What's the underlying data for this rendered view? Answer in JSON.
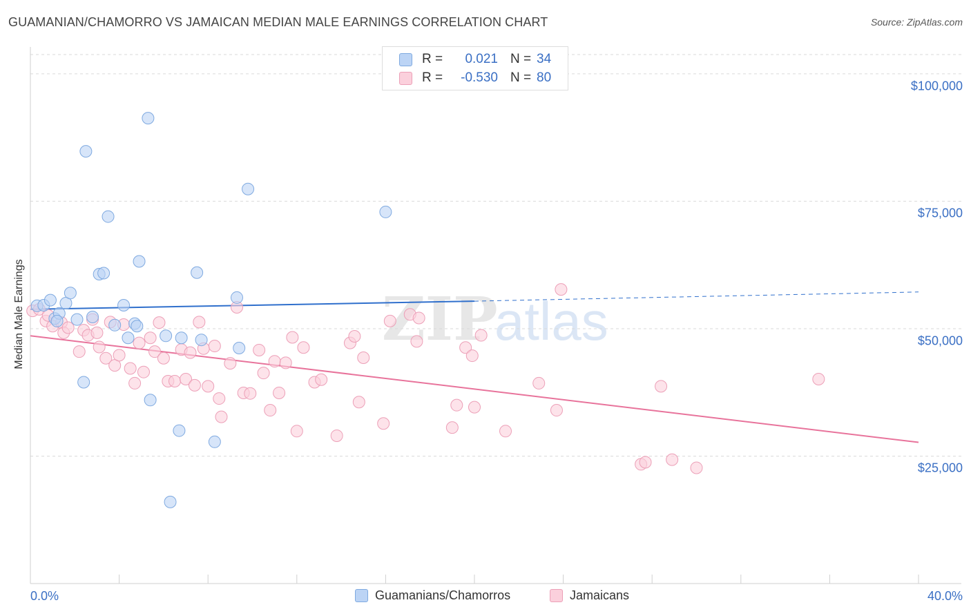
{
  "title": "GUAMANIAN/CHAMORRO VS JAMAICAN MEDIAN MALE EARNINGS CORRELATION CHART",
  "source": "Source: ZipAtlas.com",
  "watermark": {
    "zip": "ZIP",
    "atlas": "atlas"
  },
  "legend": {
    "r_label": "R =",
    "n_label": "N =",
    "series1": {
      "r": "0.021",
      "n": "34"
    },
    "series2": {
      "r": "-0.530",
      "n": "80"
    }
  },
  "colors": {
    "blue_fill": "#bcd4f5",
    "blue_stroke": "#7ea9e0",
    "blue_line": "#2f6fcc",
    "pink_fill": "#fbd0dc",
    "pink_stroke": "#ec9fb7",
    "pink_line": "#e8739b",
    "tick_text": "#3a6fc4"
  },
  "chart_data": {
    "type": "scatter",
    "title": "GUAMANIAN/CHAMORRO VS JAMAICAN MEDIAN MALE EARNINGS CORRELATION CHART",
    "xlabel": "",
    "ylabel": "Median Male Earnings",
    "xlim": [
      0,
      40
    ],
    "ylim": [
      0,
      105000
    ],
    "x_tick_labels": [
      "0.0%",
      "40.0%"
    ],
    "y_ticks": [
      25000,
      50000,
      75000,
      100000
    ],
    "y_tick_labels": [
      "$25,000",
      "$50,000",
      "$75,000",
      "$100,000"
    ],
    "series": [
      {
        "name": "Guamanians/Chamorros",
        "r": 0.021,
        "n": 34,
        "trend": {
          "x": [
            0,
            20
          ],
          "y": [
            53800,
            55400
          ],
          "dashed_to": [
            40,
            57200
          ]
        },
        "points": [
          [
            0.3,
            54500
          ],
          [
            0.6,
            54600
          ],
          [
            0.9,
            55600
          ],
          [
            1.1,
            52000
          ],
          [
            1.3,
            53000
          ],
          [
            1.6,
            55000
          ],
          [
            1.8,
            57000
          ],
          [
            2.1,
            51800
          ],
          [
            2.4,
            39500
          ],
          [
            2.5,
            84800
          ],
          [
            2.8,
            52300
          ],
          [
            3.1,
            60700
          ],
          [
            3.3,
            60900
          ],
          [
            3.5,
            72000
          ],
          [
            3.8,
            50700
          ],
          [
            4.2,
            54600
          ],
          [
            4.4,
            48200
          ],
          [
            4.7,
            51000
          ],
          [
            4.9,
            63200
          ],
          [
            5.3,
            91300
          ],
          [
            5.4,
            36000
          ],
          [
            6.1,
            48600
          ],
          [
            6.3,
            16000
          ],
          [
            6.7,
            30000
          ],
          [
            6.8,
            48200
          ],
          [
            7.5,
            61000
          ],
          [
            7.7,
            47800
          ],
          [
            8.3,
            27800
          ],
          [
            9.3,
            56100
          ],
          [
            9.4,
            46200
          ],
          [
            9.8,
            77400
          ],
          [
            16.0,
            72900
          ],
          [
            1.2,
            51500
          ],
          [
            4.8,
            50500
          ]
        ]
      },
      {
        "name": "Jamaicans",
        "r": -0.53,
        "n": 80,
        "trend": {
          "x": [
            0,
            40
          ],
          "y": [
            48600,
            27700
          ]
        },
        "points": [
          [
            0.1,
            53500
          ],
          [
            0.4,
            53800
          ],
          [
            0.7,
            51500
          ],
          [
            1.0,
            50500
          ],
          [
            1.4,
            51200
          ],
          [
            1.5,
            49200
          ],
          [
            1.7,
            50200
          ],
          [
            2.2,
            45500
          ],
          [
            2.4,
            49700
          ],
          [
            2.6,
            48700
          ],
          [
            2.8,
            51800
          ],
          [
            3.0,
            49200
          ],
          [
            3.1,
            46400
          ],
          [
            3.4,
            44200
          ],
          [
            3.6,
            51300
          ],
          [
            3.8,
            42800
          ],
          [
            4.0,
            44800
          ],
          [
            4.2,
            50800
          ],
          [
            4.5,
            42200
          ],
          [
            4.7,
            39300
          ],
          [
            4.9,
            47200
          ],
          [
            5.1,
            41500
          ],
          [
            5.4,
            48200
          ],
          [
            5.6,
            45500
          ],
          [
            5.8,
            51200
          ],
          [
            6.0,
            44200
          ],
          [
            6.2,
            39700
          ],
          [
            6.5,
            39700
          ],
          [
            6.8,
            45900
          ],
          [
            7.0,
            40100
          ],
          [
            7.2,
            45300
          ],
          [
            7.4,
            38900
          ],
          [
            7.6,
            51300
          ],
          [
            7.8,
            46100
          ],
          [
            8.0,
            38700
          ],
          [
            8.3,
            46600
          ],
          [
            8.5,
            36300
          ],
          [
            8.6,
            32700
          ],
          [
            9.0,
            43200
          ],
          [
            9.3,
            54200
          ],
          [
            9.6,
            37400
          ],
          [
            9.9,
            37300
          ],
          [
            10.3,
            45800
          ],
          [
            10.5,
            41300
          ],
          [
            10.8,
            34000
          ],
          [
            11.0,
            43600
          ],
          [
            11.2,
            37400
          ],
          [
            11.5,
            43300
          ],
          [
            11.8,
            48300
          ],
          [
            12.0,
            29900
          ],
          [
            12.3,
            46300
          ],
          [
            12.8,
            39500
          ],
          [
            13.1,
            40000
          ],
          [
            13.8,
            29000
          ],
          [
            14.4,
            47200
          ],
          [
            14.6,
            48500
          ],
          [
            14.8,
            35600
          ],
          [
            15.0,
            44300
          ],
          [
            15.9,
            31400
          ],
          [
            16.2,
            51500
          ],
          [
            17.1,
            52800
          ],
          [
            17.4,
            47500
          ],
          [
            17.5,
            52100
          ],
          [
            19.0,
            30600
          ],
          [
            19.2,
            35000
          ],
          [
            19.6,
            46300
          ],
          [
            19.9,
            44700
          ],
          [
            20.0,
            34600
          ],
          [
            20.3,
            48700
          ],
          [
            21.4,
            29900
          ],
          [
            22.9,
            39300
          ],
          [
            23.7,
            34000
          ],
          [
            23.9,
            57700
          ],
          [
            27.5,
            23400
          ],
          [
            27.7,
            23800
          ],
          [
            28.4,
            38700
          ],
          [
            28.9,
            24300
          ],
          [
            30.0,
            22700
          ],
          [
            35.5,
            40100
          ],
          [
            0.8,
            52600
          ]
        ]
      }
    ]
  },
  "bottom_legend": {
    "series1": "Guamanians/Chamorros",
    "series2": "Jamaicans"
  }
}
